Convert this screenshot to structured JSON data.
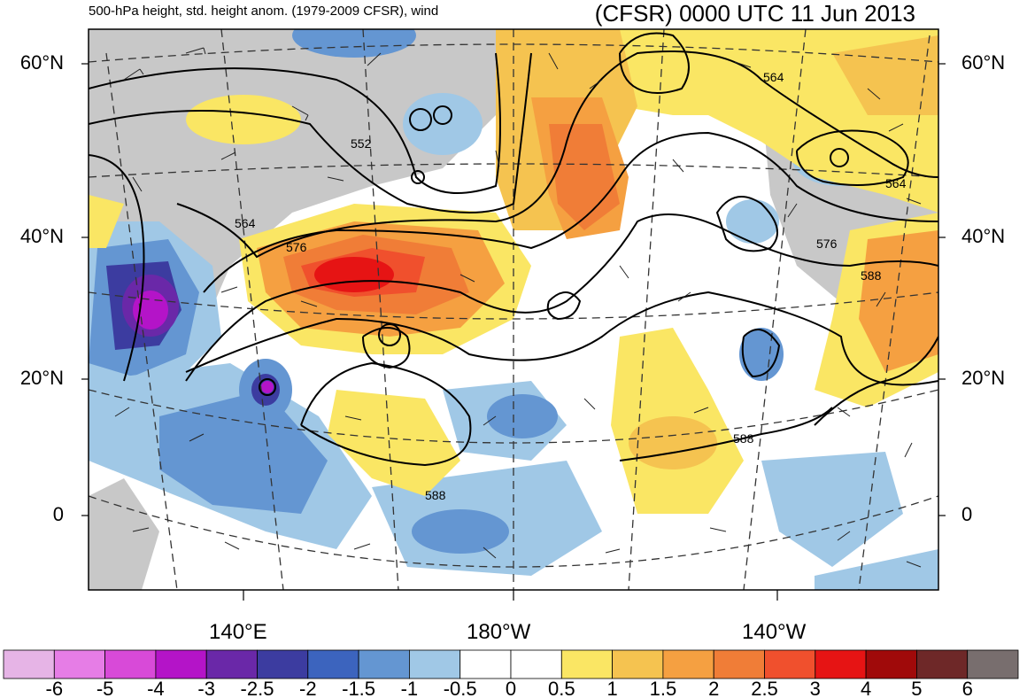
{
  "header": {
    "subtitle": "500-hPa height, std. height anom. (1979-2009 CFSR), wind",
    "title": "(CFSR) 0000 UTC 11 Jun 2013"
  },
  "map": {
    "lat_labels": [
      "60°N",
      "40°N",
      "20°N",
      "0"
    ],
    "lon_labels": [
      "140°E",
      "180°W",
      "140°W"
    ],
    "contour_labels": [
      "552",
      "564",
      "564",
      "564",
      "576",
      "576",
      "588",
      "588",
      "588"
    ]
  },
  "colorbar": {
    "labels": [
      "-6",
      "-5",
      "-4",
      "-3",
      "-2.5",
      "-2",
      "-1.5",
      "-1",
      "-0.5",
      "0",
      "0.5",
      "1",
      "1.5",
      "2",
      "2.5",
      "3",
      "4",
      "5",
      "6"
    ],
    "colors": [
      "#e6b4e6",
      "#e67de6",
      "#d84ad8",
      "#b414c8",
      "#6a28a8",
      "#3c3ca0",
      "#3c64be",
      "#6496d2",
      "#a0c8e6",
      "#ffffff",
      "#ffffff",
      "#fae664",
      "#f5c350",
      "#f5a041",
      "#f07d37",
      "#f0502d",
      "#e61414",
      "#a00a0a",
      "#6e2828",
      "#786e6e"
    ]
  }
}
